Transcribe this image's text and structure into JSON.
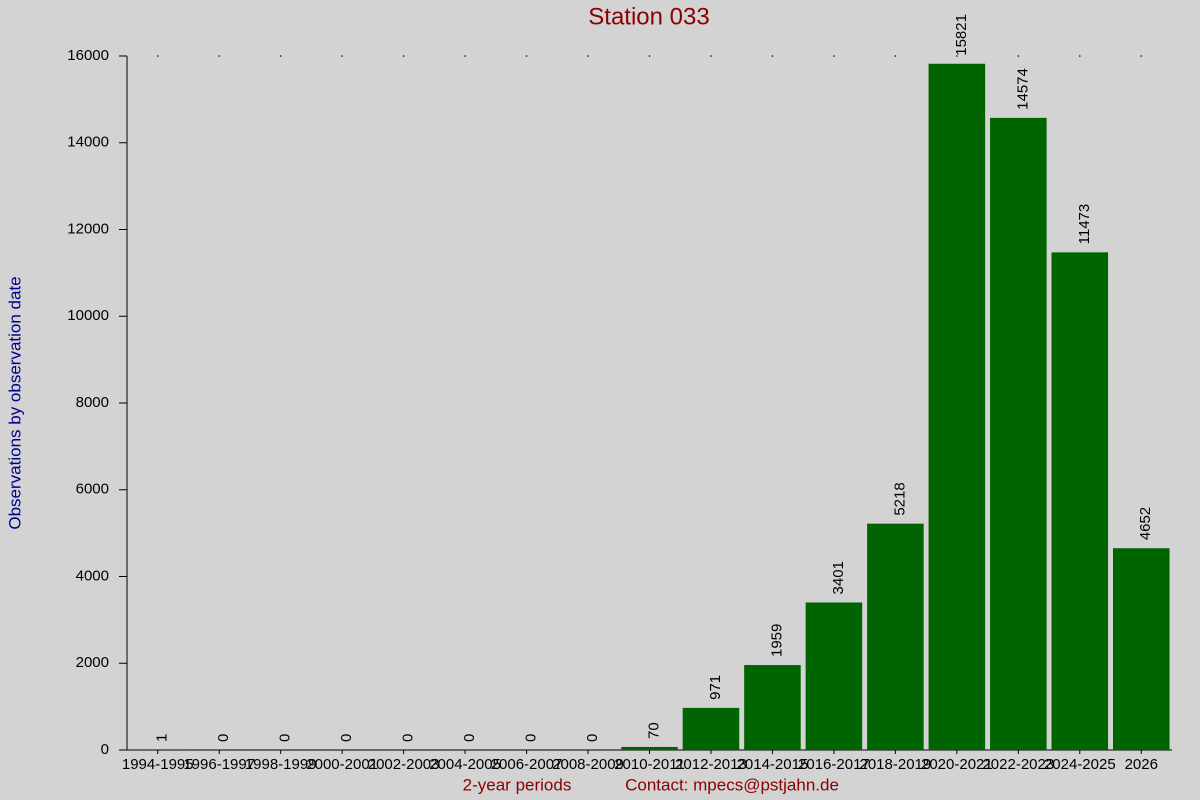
{
  "chart_data": {
    "type": "bar",
    "title": "Station 033",
    "x_label": "2-year periods",
    "y_label": "Observations by observation date",
    "footer": "Contact: mpecs@pstjahn.de",
    "categories": [
      "1994-1995",
      "1996-1997",
      "1998-1999",
      "2000-2001",
      "2002-2003",
      "2004-2005",
      "2006-2007",
      "2008-2009",
      "2010-2011",
      "2012-2013",
      "2014-2015",
      "2016-2017",
      "2018-2019",
      "2020-2021",
      "2022-2023",
      "2024-2025",
      "2026"
    ],
    "values": [
      1,
      0,
      0,
      0,
      0,
      0,
      0,
      0,
      70,
      971,
      1959,
      3401,
      5218,
      15821,
      14574,
      11473,
      4652
    ],
    "color": "#006400",
    "ylim": [
      0,
      16000
    ],
    "yticks": [
      0,
      2000,
      4000,
      6000,
      8000,
      10000,
      12000,
      14000,
      16000
    ]
  }
}
